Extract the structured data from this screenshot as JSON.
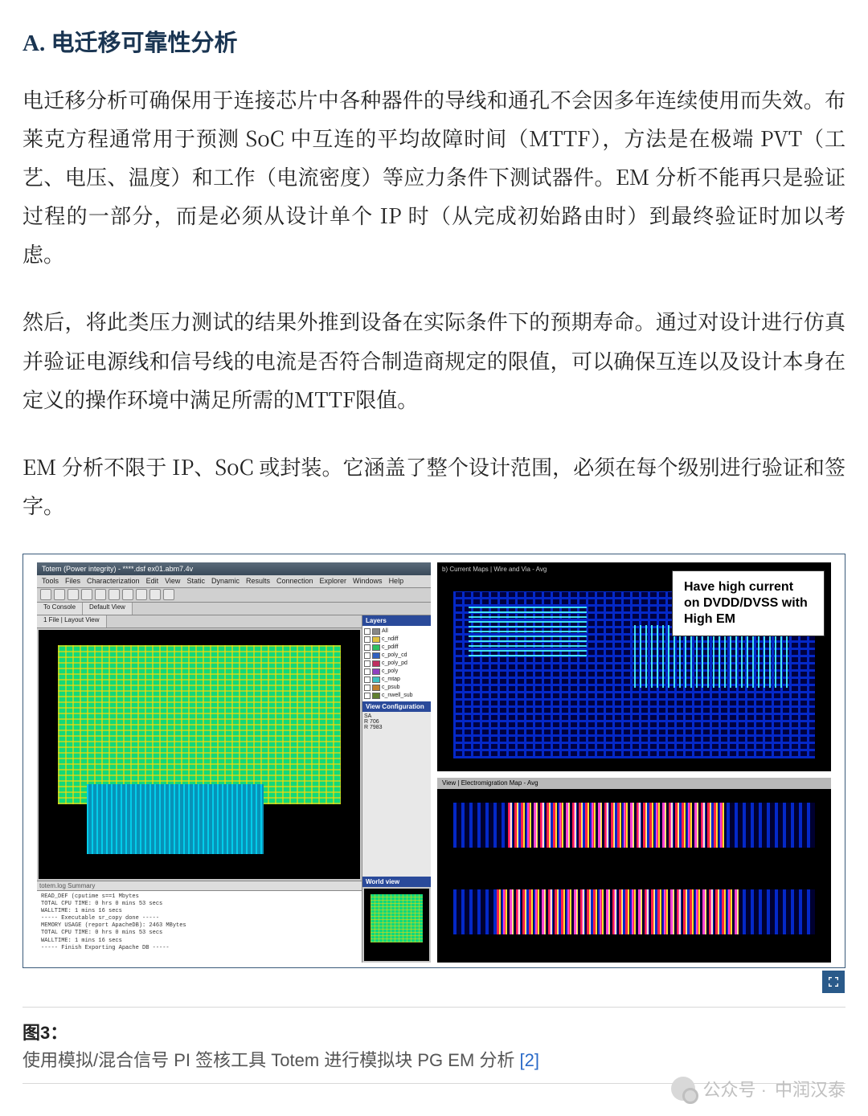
{
  "heading": "A. 电迁移可靠性分析",
  "paragraphs": {
    "p1": "电迁移分析可确保用于连接芯片中各种器件的导线和通孔不会因多年连续使用而失效。布莱克方程通常用于预测 SoC 中互连的平均故障时间（MTTF），方法是在极端 PVT（工艺、电压、温度）和工作（电流密度）等应力条件下测试器件。EM 分析不能再只是验证过程的一部分，而是必须从设计单个 IP 时（从完成初始路由时）到最终验证时加以考虑。",
    "p2": "然后，将此类压力测试的结果外推到设备在实际条件下的预期寿命。通过对设计进行仿真并验证电源线和信号线的电流是否符合制造商规定的限值，可以确保互连以及设计本身在定义的操作环境中满足所需的MTTF限值。",
    "p3": "EM 分析不限于 IP、SoC 或封装。它涵盖了整个设计范围，必须在每个级别进行验证和签字。"
  },
  "figure": {
    "eda_window": {
      "title": "Totem (Power integrity) - ****.dsf ex01.abm7.4v",
      "menu": [
        "Tools",
        "Files",
        "Characterization",
        "Edit",
        "View",
        "Static",
        "Dynamic",
        "Results",
        "Connection",
        "Explorer",
        "Windows",
        "Help"
      ],
      "tabs": {
        "left": "To Console",
        "right": "Default View"
      },
      "side_tabs": "1 File | Layout View",
      "layers_panel": {
        "header": "Layers",
        "items": [
          "All",
          "c_ndiff",
          "c_pdiff",
          "c_poly_cd",
          "c_poly_pd",
          "c_poly",
          "c_mtap",
          "c_psub",
          "c_nwell_sub"
        ],
        "swatch_colors": [
          "#888888",
          "#e0c040",
          "#30c060",
          "#3060c0",
          "#c03060",
          "#9040c0",
          "#40c0c0",
          "#c08030",
          "#608030"
        ]
      },
      "view_config_header": "View Configuration",
      "view_config_lines": [
        "SA",
        "R 706",
        "R 7983"
      ],
      "world_view_header": "World view",
      "log_tabs": "totem.log    Summary",
      "log_lines": [
        "READ_DEF (cputime  s==1 Mbytes",
        "TOTAL CPU TIME: 0 hrs 0 mins 53 secs",
        "WALLTIME: 1 mins 16 secs",
        "",
        "----- Executable sr_copy done -----",
        "",
        "MEMORY USAGE (report ApacheDB): 2463 MBytes",
        "TOTAL CPU TIME: 0 hrs 0 mins 53 secs",
        "WALLTIME: 1 mins 16 secs",
        "",
        "----- Finish Exporting Apache DB -----"
      ],
      "layout_colors": {
        "background": "#000000",
        "fill": "#12d97a",
        "grid": "#ffd800",
        "sub_block": "#0892b8"
      }
    },
    "current_map": {
      "title": "b) Current Maps | Wire and Via - Avg",
      "callout_text": "Have high current on DVDD/DVSS with High EM",
      "colors": {
        "background": "#000000",
        "wire": "#0428c8",
        "hotspot": "#40e0e0",
        "callout_bg": "#ffffff",
        "callout_text": "#000000"
      }
    },
    "em_map": {
      "title": "View | Electromigration Map - Avg",
      "colors": {
        "background": "#000000",
        "base": "#0428c8",
        "em_high": "#ff2020",
        "em_mid": "#ffe000"
      }
    },
    "expand_label": "Expand figure"
  },
  "caption": {
    "label": "图3：",
    "text_prefix": "使用模拟/混合信号 PI 签核工具 Totem 进行模拟块 PG EM 分析 ",
    "ref": "[2]"
  },
  "watermark": {
    "prefix": "公众号 · ",
    "name": "中润汉泰"
  }
}
